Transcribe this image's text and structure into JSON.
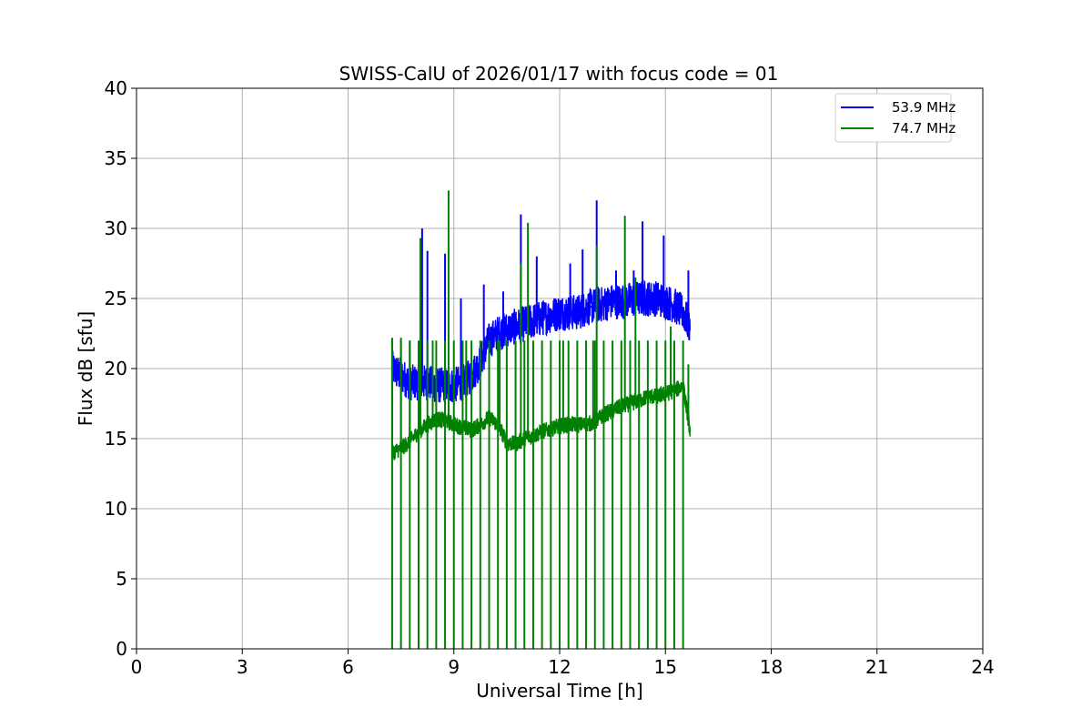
{
  "chart_data": {
    "type": "line",
    "title": "SWISS-CalU of 2026/01/17 with focus code = 01",
    "xlabel": "Universal Time [h]",
    "ylabel": "Flux dB [sfu]",
    "xlim": [
      0,
      24
    ],
    "ylim": [
      0,
      40
    ],
    "xticks": [
      0,
      3,
      6,
      9,
      12,
      15,
      18,
      21,
      24
    ],
    "yticks": [
      0,
      5,
      10,
      15,
      20,
      25,
      30,
      35,
      40
    ],
    "grid": true,
    "legend_position": "top-right",
    "series": [
      {
        "name": "53.9 MHz",
        "color": "#0000ff",
        "x": [
          7.25,
          7.5,
          7.75,
          8.0,
          8.25,
          8.5,
          8.75,
          9.0,
          9.25,
          9.5,
          9.75,
          10.0,
          10.25,
          10.5,
          10.75,
          11.0,
          11.25,
          11.5,
          11.75,
          12.0,
          12.25,
          12.5,
          12.75,
          13.0,
          13.25,
          13.5,
          13.75,
          14.0,
          14.25,
          14.5,
          14.75,
          15.0,
          15.25,
          15.5,
          15.7
        ],
        "y": [
          20.0,
          19.5,
          19.0,
          19.0,
          19.0,
          18.8,
          18.8,
          18.8,
          19.0,
          19.5,
          20.5,
          22.0,
          22.5,
          22.8,
          23.0,
          23.2,
          23.4,
          23.6,
          23.8,
          24.0,
          24.0,
          24.0,
          24.3,
          24.5,
          24.6,
          24.8,
          24.8,
          24.9,
          25.0,
          25.0,
          25.0,
          24.8,
          24.5,
          24.0,
          23.0
        ],
        "spikes": [
          {
            "x": 8.1,
            "y": 30.0
          },
          {
            "x": 8.25,
            "y": 28.4
          },
          {
            "x": 8.75,
            "y": 28.2
          },
          {
            "x": 9.2,
            "y": 25.0
          },
          {
            "x": 9.85,
            "y": 26.0
          },
          {
            "x": 10.4,
            "y": 25.5
          },
          {
            "x": 10.9,
            "y": 31.0
          },
          {
            "x": 11.35,
            "y": 28.0
          },
          {
            "x": 12.3,
            "y": 27.5
          },
          {
            "x": 12.65,
            "y": 28.5
          },
          {
            "x": 13.05,
            "y": 32.0
          },
          {
            "x": 13.6,
            "y": 27.0
          },
          {
            "x": 14.1,
            "y": 27.0
          },
          {
            "x": 14.35,
            "y": 30.5
          },
          {
            "x": 14.95,
            "y": 29.5
          },
          {
            "x": 15.65,
            "y": 27.0
          }
        ]
      },
      {
        "name": "74.7 MHz",
        "color": "#008000",
        "x": [
          7.25,
          7.5,
          7.75,
          8.0,
          8.25,
          8.5,
          8.75,
          9.0,
          9.25,
          9.5,
          9.75,
          10.0,
          10.25,
          10.5,
          10.75,
          11.0,
          11.25,
          11.5,
          11.75,
          12.0,
          12.25,
          12.5,
          12.75,
          13.0,
          13.25,
          13.5,
          13.75,
          14.0,
          14.25,
          14.5,
          14.75,
          15.0,
          15.25,
          15.5,
          15.7
        ],
        "y": [
          14.0,
          14.3,
          14.8,
          15.5,
          16.0,
          16.4,
          16.3,
          16.0,
          15.8,
          15.6,
          16.0,
          16.5,
          16.0,
          14.7,
          14.6,
          15.0,
          15.2,
          15.5,
          15.7,
          15.9,
          16.0,
          16.0,
          16.0,
          16.2,
          16.7,
          17.0,
          17.3,
          17.5,
          17.7,
          18.0,
          18.0,
          18.2,
          18.4,
          18.8,
          15.5
        ],
        "spikes": [
          {
            "x": 7.25,
            "y": 22.2
          },
          {
            "x": 7.5,
            "y": 22.2
          },
          {
            "x": 7.75,
            "y": 22.0
          },
          {
            "x": 8.05,
            "y": 29.3
          },
          {
            "x": 8.4,
            "y": 22.0
          },
          {
            "x": 8.85,
            "y": 32.7
          },
          {
            "x": 9.35,
            "y": 22.0
          },
          {
            "x": 10.3,
            "y": 22.0
          },
          {
            "x": 10.9,
            "y": 27.5
          },
          {
            "x": 11.1,
            "y": 30.4
          },
          {
            "x": 12.1,
            "y": 22.0
          },
          {
            "x": 12.95,
            "y": 22.0
          },
          {
            "x": 13.05,
            "y": 28.8
          },
          {
            "x": 13.85,
            "y": 30.9
          },
          {
            "x": 14.15,
            "y": 26.5
          },
          {
            "x": 15.15,
            "y": 23.0
          },
          {
            "x": 15.65,
            "y": 20.3
          }
        ],
        "dropouts_x": [
          7.25,
          7.5,
          7.75,
          8.0,
          8.25,
          8.5,
          8.75,
          9.0,
          9.25,
          9.5,
          9.75,
          10.0,
          10.25,
          10.5,
          10.75,
          11.0,
          11.25,
          11.5,
          11.75,
          12.0,
          12.25,
          12.5,
          12.75,
          13.0,
          13.25,
          13.5,
          13.75,
          14.0,
          14.25,
          14.5,
          14.75,
          15.0,
          15.25,
          15.5
        ],
        "dropout_min": 0,
        "dropout_max": 22.0
      }
    ]
  }
}
